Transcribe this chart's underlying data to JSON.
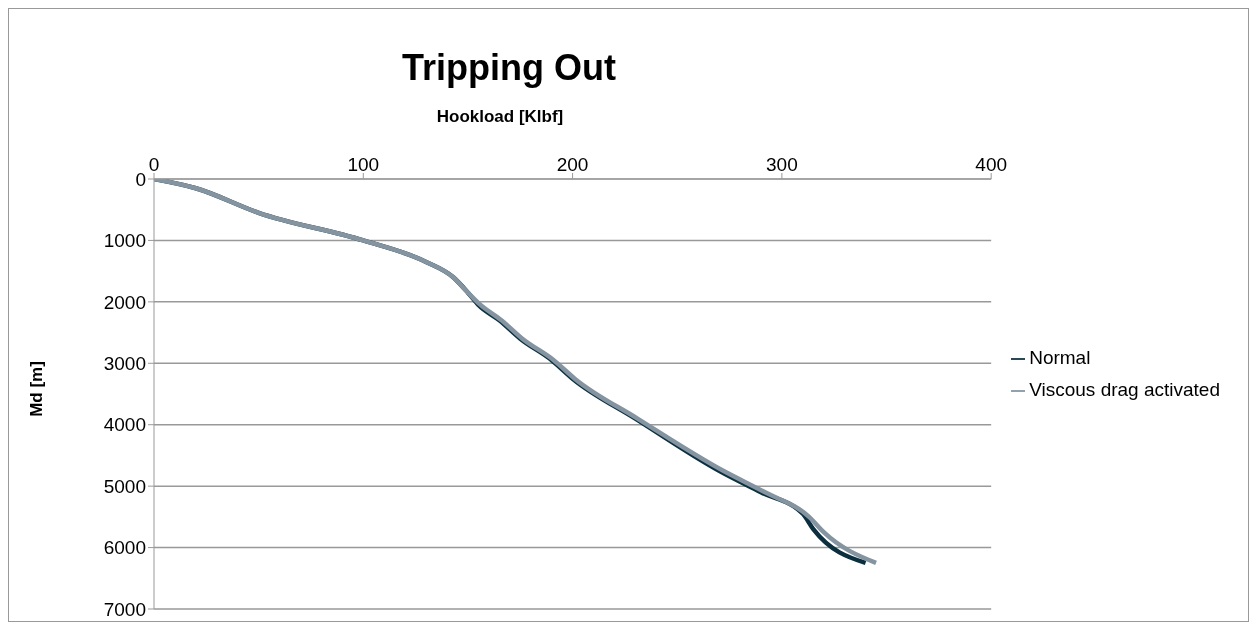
{
  "chart_data": {
    "type": "line",
    "title": "Tripping Out",
    "xlabel": "Hookload [Klbf]",
    "ylabel": "Md [m]",
    "xlim": [
      0,
      400
    ],
    "xticks": [
      0,
      100,
      200,
      300,
      400
    ],
    "ylim": [
      7000,
      0
    ],
    "yticks": [
      0,
      1000,
      2000,
      3000,
      4000,
      5000,
      6000,
      7000
    ],
    "grid": "y",
    "legend": "right",
    "marker": "none",
    "line_style": "solid",
    "series": [
      {
        "name": "Normal",
        "color": "#0b2f3f",
        "x": [
          0,
          20,
          50,
          100,
          130,
          143,
          150,
          155,
          165,
          175,
          190,
          200,
          230,
          270,
          290,
          310,
          315,
          340
        ],
        "values": [
          0,
          150,
          550,
          1000,
          1350,
          1600,
          1850,
          2050,
          2300,
          2600,
          2950,
          3250,
          3900,
          4750,
          5100,
          5450,
          5700,
          6250
        ]
      },
      {
        "name": "Viscous drag activated",
        "color": "#8494a0",
        "x": [
          0,
          20,
          50,
          100,
          130,
          143,
          150,
          156,
          166,
          176,
          191,
          201,
          231,
          272,
          292,
          313,
          320,
          345
        ],
        "values": [
          0,
          150,
          550,
          1000,
          1350,
          1600,
          1850,
          2050,
          2300,
          2600,
          2950,
          3250,
          3900,
          4750,
          5100,
          5500,
          5750,
          6250
        ]
      }
    ]
  }
}
